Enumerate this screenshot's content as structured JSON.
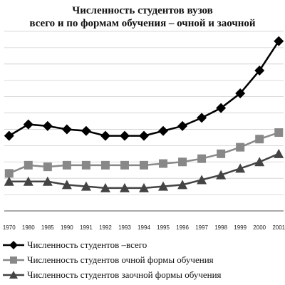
{
  "chart_data": {
    "type": "line",
    "title": "Численность студентов вузов",
    "subtitle": "всего и по формам обучения – очной и заочной",
    "categories": [
      "1970",
      "1980",
      "1985",
      "1990",
      "1991",
      "1992",
      "1993",
      "1994",
      "1995",
      "1996",
      "1997",
      "1998",
      "1999",
      "2000",
      "2001"
    ],
    "series": [
      {
        "name": "Численность студентов –всего",
        "marker": "diamond",
        "color": "#000000",
        "values": [
          4.6,
          5.3,
          5.2,
          5.0,
          4.9,
          4.6,
          4.6,
          4.6,
          4.9,
          5.2,
          5.7,
          6.3,
          7.2,
          8.6,
          10.4
        ]
      },
      {
        "name": "Численность студентов очной формы обучения",
        "marker": "square",
        "color": "#888888",
        "values": [
          2.3,
          2.8,
          2.7,
          2.8,
          2.8,
          2.8,
          2.8,
          2.8,
          2.9,
          3.0,
          3.2,
          3.5,
          3.9,
          4.4,
          4.8
        ]
      },
      {
        "name": "Численность студентов заочной формы обучения",
        "marker": "triangle",
        "color": "#444444",
        "values": [
          1.8,
          1.8,
          1.8,
          1.6,
          1.5,
          1.4,
          1.4,
          1.4,
          1.5,
          1.6,
          1.9,
          2.2,
          2.6,
          3.0,
          3.5
        ]
      }
    ],
    "ylim": [
      0,
      11
    ],
    "grid": true,
    "legend_position": "bottom"
  }
}
